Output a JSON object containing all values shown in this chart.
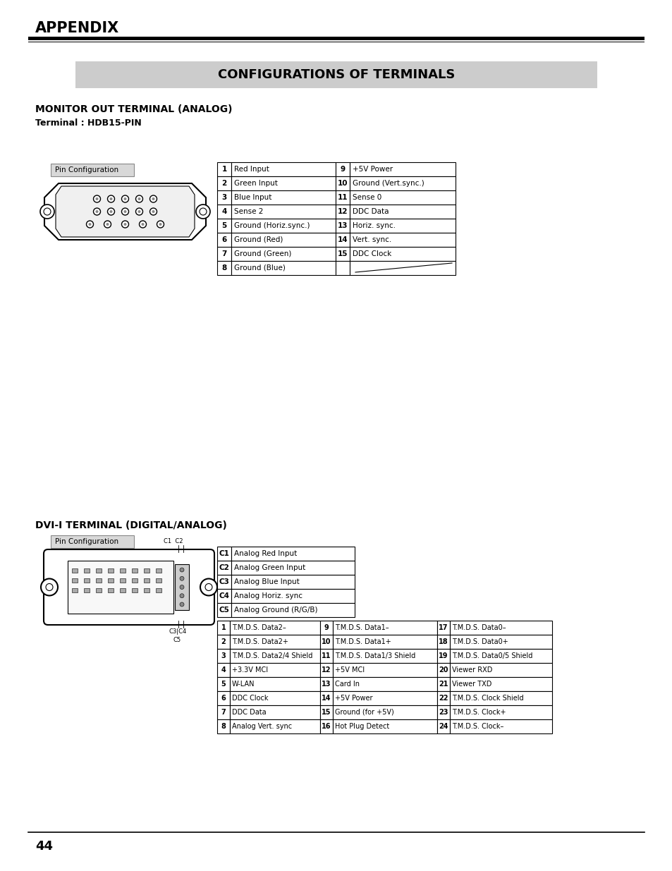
{
  "page_title": "APPENDIX",
  "section_title": "CONFIGURATIONS OF TERMINALS",
  "monitor_title": "MONITOR OUT TERMINAL (ANALOG)",
  "monitor_subtitle": "Terminal : HDB15-PIN",
  "dvi_title": "DVI-I TERMINAL (DIGITAL/ANALOG)",
  "pin_config_label": "Pin Configuration",
  "monitor_table": [
    [
      "1",
      "Red Input",
      "9",
      "+5V Power"
    ],
    [
      "2",
      "Green Input",
      "10",
      "Ground (Vert.sync.)"
    ],
    [
      "3",
      "Blue Input",
      "11",
      "Sense 0"
    ],
    [
      "4",
      "Sense 2",
      "12",
      "DDC Data"
    ],
    [
      "5",
      "Ground (Horiz.sync.)",
      "13",
      "Horiz. sync."
    ],
    [
      "6",
      "Ground (Red)",
      "14",
      "Vert. sync."
    ],
    [
      "7",
      "Ground (Green)",
      "15",
      "DDC Clock"
    ],
    [
      "8",
      "Ground (Blue)",
      "",
      ""
    ]
  ],
  "dvi_analog_table": [
    [
      "C1",
      "Analog Red Input"
    ],
    [
      "C2",
      "Analog Green Input"
    ],
    [
      "C3",
      "Analog Blue Input"
    ],
    [
      "C4",
      "Analog Horiz. sync"
    ],
    [
      "C5",
      "Analog Ground (R/G/B)"
    ]
  ],
  "dvi_main_table": [
    [
      "1",
      "T.M.D.S. Data2–",
      "9",
      "T.M.D.S. Data1–",
      "17",
      "T.M.D.S. Data0–"
    ],
    [
      "2",
      "T.M.D.S. Data2+",
      "10",
      "T.M.D.S. Data1+",
      "18",
      "T.M.D.S. Data0+"
    ],
    [
      "3",
      "T.M.D.S. Data2/4 Shield",
      "11",
      "T.M.D.S. Data1/3 Shield",
      "19",
      "T.M.D.S. Data0/5 Shield"
    ],
    [
      "4",
      "+3.3V MCI",
      "12",
      "+5V MCI",
      "20",
      "Viewer RXD"
    ],
    [
      "5",
      "W-LAN",
      "13",
      "Card In",
      "21",
      "Viewer TXD"
    ],
    [
      "6",
      "DDC Clock",
      "14",
      "+5V Power",
      "22",
      "T.M.D.S. Clock Shield"
    ],
    [
      "7",
      "DDC Data",
      "15",
      "Ground (for +5V)",
      "23",
      "T.M.D.S. Clock+"
    ],
    [
      "8",
      "Analog Vert. sync",
      "16",
      "Hot Plug Detect",
      "24",
      "T.M.D.S. Clock–"
    ]
  ],
  "bg_color": "#ffffff",
  "title_bg": "#cccccc",
  "pin_cfg_bg": "#d8d8d8",
  "page_num": "44"
}
